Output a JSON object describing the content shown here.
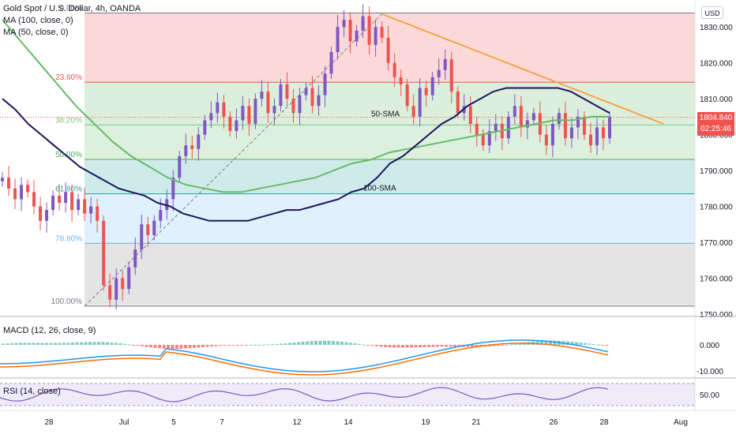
{
  "symbol": {
    "title": "Gold Spot / U.S. Dollar, 4h, OANDA",
    "currency": "USD"
  },
  "indicators": {
    "ma100": "MA (100, close, 0)",
    "ma50": "MA (50, close, 0)",
    "macd": "MACD (12, 26, close, 9)",
    "rsi": "RSI (14, close)"
  },
  "last_price": {
    "value": "1804.840",
    "countdown": "02:25:46",
    "color": "#ef5350"
  },
  "annotations": {
    "sma50_label": "50-SMA",
    "sma100_label": "100-SMA"
  },
  "colors": {
    "up": "#7e57c2",
    "down": "#ef5350",
    "ma50": "#1b1660",
    "ma100": "#66bb6a",
    "trendline": "#f7a44c"
  },
  "chart_data": {
    "type": "candlestick",
    "title": "Gold Spot / U.S. Dollar, 4h, OANDA",
    "y_axis": {
      "ticks": [
        1750,
        1760,
        1770,
        1780,
        1790,
        1800,
        1810,
        1820,
        1830
      ],
      "tick_labels": [
        "1750.000",
        "1760.000",
        "1770.000",
        "1780.000",
        "1790.000",
        "1800.000",
        "1810.000",
        "1820.000",
        "1830.000"
      ],
      "range": [
        1750,
        1834
      ]
    },
    "x_axis": {
      "tick_labels": [
        "28",
        "Jul",
        "5",
        "7",
        "12",
        "14",
        "19",
        "21",
        "26",
        "28",
        "Aug"
      ]
    },
    "fibonacci": {
      "high": 1833.9,
      "low": 1752.2,
      "levels": [
        {
          "label": "0.00%",
          "value": 1833.9
        },
        {
          "label": "23.60%",
          "value": 1814.6
        },
        {
          "label": "38.20%",
          "value": 1802.7
        },
        {
          "label": "50.00%",
          "value": 1793.1
        },
        {
          "label": "61.80%",
          "value": 1783.5
        },
        {
          "label": "78.60%",
          "value": 1769.7
        },
        {
          "label": "100.00%",
          "value": 1752.2
        }
      ]
    },
    "last_price": 1804.84,
    "close_path": [
      1788,
      1785,
      1782,
      1786,
      1784,
      1780,
      1776,
      1779,
      1783,
      1781,
      1784,
      1779,
      1782,
      1778,
      1780,
      1776,
      1758,
      1754,
      1760,
      1757,
      1763,
      1768,
      1775,
      1772,
      1776,
      1779,
      1782,
      1788,
      1794,
      1797,
      1796,
      1800,
      1804,
      1806,
      1809,
      1805,
      1801,
      1804,
      1808,
      1803,
      1810,
      1812,
      1806,
      1808,
      1814,
      1810,
      1806,
      1811,
      1813,
      1808,
      1811,
      1817,
      1823,
      1830,
      1832,
      1826,
      1829,
      1833,
      1825,
      1830,
      1827,
      1820,
      1816,
      1814,
      1808,
      1805,
      1813,
      1811,
      1816,
      1818,
      1821,
      1812,
      1806,
      1808,
      1803,
      1800,
      1797,
      1801,
      1803,
      1799,
      1805,
      1808,
      1802,
      1804,
      1806,
      1800,
      1797,
      1803,
      1806,
      1799,
      1802,
      1805,
      1800,
      1797,
      1802,
      1799,
      1805
    ],
    "ma50_path": [
      1810,
      1807,
      1803,
      1800,
      1797,
      1794,
      1791,
      1789,
      1787,
      1785,
      1784,
      1783,
      1781,
      1780,
      1778,
      1777,
      1776,
      1776,
      1776,
      1776,
      1777,
      1778,
      1779,
      1779,
      1780,
      1781,
      1782,
      1784,
      1785,
      1788,
      1792,
      1794,
      1797,
      1800,
      1803,
      1805,
      1808,
      1810,
      1812,
      1813,
      1813,
      1813,
      1813,
      1813,
      1812,
      1810,
      1808,
      1806
    ],
    "ma100_path": [
      1832,
      1826,
      1820,
      1814,
      1808,
      1803,
      1798,
      1794,
      1791,
      1788,
      1786,
      1785,
      1784,
      1784,
      1785,
      1786,
      1787,
      1788,
      1790,
      1792,
      1793,
      1795,
      1796,
      1797,
      1798,
      1799,
      1800,
      1801,
      1802,
      1803,
      1804,
      1804,
      1805,
      1805
    ],
    "trendline": {
      "from": 1833.5,
      "to": 1803.0
    },
    "sma50_value": 1806,
    "sma100_value": 1784,
    "macd": {
      "tick_labels": [
        "0.000",
        "-10.000"
      ]
    },
    "rsi": {
      "tick_labels": [
        "50.00"
      ]
    }
  }
}
